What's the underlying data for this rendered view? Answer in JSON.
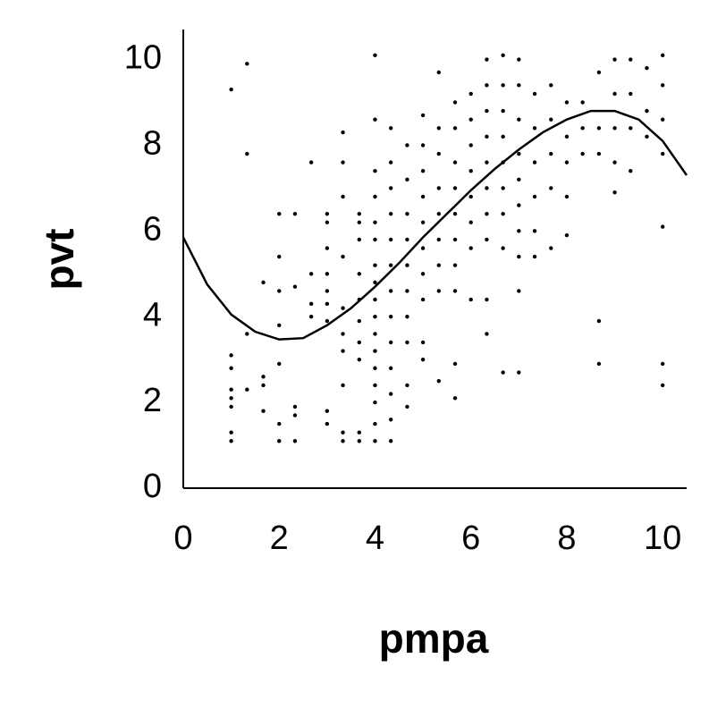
{
  "chart_data": {
    "type": "scatter",
    "xlabel": "pmpa",
    "ylabel": "pvt",
    "xlim": [
      0,
      10.5
    ],
    "ylim": [
      0,
      10.7
    ],
    "xticks": [
      0,
      2,
      4,
      6,
      8,
      10
    ],
    "yticks": [
      0,
      2,
      4,
      6,
      8,
      10
    ],
    "points": {
      "color": "#000000",
      "x": [
        1,
        1,
        1,
        1,
        1,
        1,
        1,
        1,
        1.33,
        1.33,
        1.33,
        1.33,
        1.67,
        1.67,
        1.67,
        1.67,
        2,
        2,
        2,
        2,
        2,
        2,
        2,
        2.33,
        2.33,
        2.33,
        2.33,
        2.33,
        2.67,
        2.67,
        2.67,
        2.67,
        3,
        3,
        3,
        3,
        3,
        3,
        3,
        3,
        3,
        3.33,
        3.33,
        3.33,
        3.33,
        3.33,
        3.33,
        3.33,
        3.33,
        3.33,
        3.33,
        3.67,
        3.67,
        3.67,
        3.67,
        3.67,
        3.67,
        3.67,
        3.67,
        3.67,
        3.67,
        4,
        4,
        4,
        4,
        4,
        4,
        4,
        4,
        4,
        4,
        4,
        4,
        4,
        4,
        4,
        4,
        4,
        4.33,
        4.33,
        4.33,
        4.33,
        4.33,
        4.33,
        4.33,
        4.33,
        4.33,
        4.33,
        4.33,
        4.33,
        4.33,
        4.67,
        4.67,
        4.67,
        4.67,
        4.67,
        4.67,
        4.67,
        4.67,
        4.67,
        4.67,
        5,
        5,
        5,
        5,
        5,
        5,
        5,
        5,
        5,
        5,
        5.33,
        5.33,
        5.33,
        5.33,
        5.33,
        5.33,
        5.33,
        5.33,
        5.33,
        5.67,
        5.67,
        5.67,
        5.67,
        5.67,
        5.67,
        5.67,
        5.67,
        5.67,
        5.67,
        6,
        6,
        6,
        6,
        6,
        6,
        6,
        6,
        6.33,
        6.33,
        6.33,
        6.33,
        6.33,
        6.33,
        6.33,
        6.33,
        6.33,
        6.33,
        6.67,
        6.67,
        6.67,
        6.67,
        6.67,
        6.67,
        6.67,
        6.67,
        6.67,
        7,
        7,
        7,
        7,
        7,
        7,
        7,
        7,
        7,
        7,
        7.33,
        7.33,
        7.33,
        7.33,
        7.33,
        7.33,
        7.67,
        7.67,
        7.67,
        7.67,
        7.67,
        8,
        8,
        8,
        8,
        8,
        8.33,
        8.33,
        8.33,
        8.67,
        8.67,
        8.67,
        8.67,
        8.67,
        9,
        9,
        9,
        9,
        9,
        9.33,
        9.33,
        9.33,
        9.33,
        9.67,
        9.67,
        9.67,
        10,
        10,
        10,
        10,
        10,
        10,
        10
      ],
      "y": [
        9.3,
        3.1,
        2.8,
        2.3,
        2.1,
        1.9,
        1.3,
        1.1,
        9.9,
        7.8,
        3.6,
        2.3,
        4.8,
        2.6,
        2.4,
        1.8,
        6.4,
        5.4,
        4.6,
        3.8,
        2.9,
        1.5,
        1.1,
        6.4,
        4.7,
        1.9,
        1.7,
        1.1,
        7.6,
        5.0,
        4.3,
        4.0,
        6.4,
        6.2,
        5.6,
        5.0,
        4.6,
        4.3,
        3.9,
        1.8,
        1.5,
        8.3,
        7.6,
        6.8,
        5.4,
        4.2,
        3.6,
        3.2,
        2.4,
        1.3,
        1.1,
        6.4,
        6.2,
        5.8,
        5.0,
        4.4,
        3.9,
        3.4,
        3.0,
        1.3,
        1.1,
        10.1,
        8.6,
        7.4,
        6.8,
        6.2,
        5.8,
        5.2,
        4.8,
        4.4,
        4.0,
        3.6,
        3.2,
        2.8,
        2.4,
        2.0,
        1.5,
        1.1,
        8.4,
        7.6,
        7.0,
        6.4,
        5.8,
        5.2,
        4.6,
        4.0,
        3.4,
        2.8,
        2.2,
        1.6,
        1.1,
        8.0,
        7.2,
        6.4,
        5.8,
        5.2,
        4.6,
        4.0,
        3.4,
        2.4,
        1.9,
        8.7,
        8.0,
        7.4,
        6.8,
        6.2,
        5.6,
        5.0,
        4.4,
        3.4,
        3.0,
        9.7,
        8.4,
        7.8,
        7.0,
        6.4,
        5.8,
        5.2,
        4.6,
        2.5,
        9.0,
        8.4,
        7.6,
        7.0,
        6.4,
        5.8,
        5.2,
        4.6,
        2.9,
        2.1,
        9.2,
        8.6,
        8.0,
        7.4,
        6.8,
        6.2,
        5.6,
        4.4,
        10.0,
        9.4,
        8.8,
        8.2,
        7.6,
        7.0,
        6.4,
        5.8,
        4.4,
        3.6,
        10.1,
        9.4,
        8.8,
        8.2,
        7.6,
        7.0,
        6.4,
        5.6,
        2.7,
        10.0,
        9.4,
        8.6,
        7.8,
        7.2,
        6.6,
        6.0,
        5.4,
        4.6,
        2.7,
        9.2,
        8.4,
        7.6,
        6.8,
        6.0,
        5.4,
        9.4,
        8.6,
        7.8,
        7.0,
        5.6,
        9.0,
        8.2,
        7.6,
        6.8,
        5.9,
        9.0,
        8.4,
        7.8,
        9.7,
        8.4,
        7.8,
        3.9,
        2.9,
        10.0,
        9.2,
        8.4,
        7.6,
        6.9,
        10.0,
        9.2,
        8.4,
        7.4,
        9.8,
        8.8,
        8.2,
        10.1,
        9.4,
        8.6,
        7.8,
        6.1,
        2.9,
        2.4
      ]
    },
    "fit": {
      "color": "#000000",
      "x": [
        0,
        0.5,
        1,
        1.5,
        2,
        2.5,
        3,
        3.5,
        4,
        4.5,
        5,
        5.5,
        6,
        6.5,
        7,
        7.5,
        8,
        8.5,
        9,
        9.5,
        10,
        10.5
      ],
      "y": [
        5.85,
        4.75,
        4.05,
        3.65,
        3.47,
        3.5,
        3.8,
        4.2,
        4.7,
        5.25,
        5.85,
        6.4,
        6.95,
        7.45,
        7.9,
        8.3,
        8.6,
        8.8,
        8.8,
        8.6,
        8.1,
        7.3
      ]
    }
  }
}
